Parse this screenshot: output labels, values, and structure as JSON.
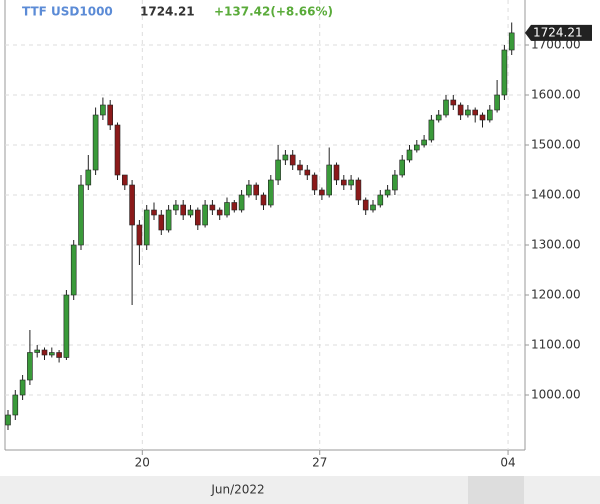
{
  "chart_data": {
    "type": "candlestick",
    "symbol": "TTF USD1000",
    "last": "1724.21",
    "change": "+137.42(+8.66%)",
    "period_label": "Jun/2022",
    "up_color": "#3a9a3a",
    "down_color": "#8b1a1a",
    "open": [
      940,
      960,
      1000,
      1030,
      1085,
      1090,
      1080,
      1085,
      1075,
      1200,
      1300,
      1420,
      1450,
      1560,
      1580,
      1540,
      1440,
      1420,
      1340,
      1300,
      1370,
      1360,
      1330,
      1370,
      1380,
      1360,
      1370,
      1340,
      1380,
      1370,
      1360,
      1385,
      1370,
      1400,
      1420,
      1400,
      1380,
      1430,
      1470,
      1480,
      1460,
      1450,
      1440,
      1410,
      1400,
      1460,
      1430,
      1420,
      1430,
      1390,
      1370,
      1380,
      1400,
      1410,
      1440,
      1470,
      1490,
      1500,
      1510,
      1550,
      1560,
      1590,
      1580,
      1560,
      1570,
      1560,
      1550,
      1570,
      1600,
      1690
    ],
    "high": [
      970,
      1010,
      1040,
      1130,
      1100,
      1095,
      1095,
      1090,
      1210,
      1310,
      1440,
      1480,
      1575,
      1595,
      1590,
      1545,
      1440,
      1430,
      1350,
      1380,
      1385,
      1370,
      1380,
      1390,
      1390,
      1380,
      1375,
      1390,
      1390,
      1375,
      1395,
      1390,
      1410,
      1430,
      1425,
      1405,
      1440,
      1500,
      1490,
      1490,
      1470,
      1460,
      1445,
      1415,
      1495,
      1465,
      1440,
      1440,
      1435,
      1395,
      1390,
      1410,
      1420,
      1450,
      1480,
      1500,
      1510,
      1520,
      1560,
      1570,
      1600,
      1600,
      1585,
      1580,
      1575,
      1565,
      1580,
      1630,
      1700,
      1745
    ],
    "low": [
      930,
      950,
      990,
      1020,
      1075,
      1070,
      1075,
      1065,
      1070,
      1190,
      1290,
      1410,
      1440,
      1550,
      1530,
      1430,
      1410,
      1180,
      1260,
      1290,
      1350,
      1320,
      1325,
      1360,
      1350,
      1355,
      1330,
      1335,
      1360,
      1350,
      1355,
      1365,
      1365,
      1395,
      1390,
      1370,
      1375,
      1420,
      1460,
      1450,
      1440,
      1430,
      1400,
      1390,
      1395,
      1420,
      1410,
      1410,
      1380,
      1360,
      1365,
      1375,
      1395,
      1400,
      1435,
      1465,
      1485,
      1495,
      1505,
      1545,
      1555,
      1570,
      1550,
      1555,
      1545,
      1535,
      1545,
      1565,
      1590,
      1680
    ],
    "close": [
      960,
      1000,
      1030,
      1085,
      1090,
      1080,
      1085,
      1075,
      1200,
      1300,
      1420,
      1450,
      1560,
      1580,
      1540,
      1440,
      1420,
      1340,
      1300,
      1370,
      1360,
      1330,
      1370,
      1380,
      1360,
      1370,
      1340,
      1380,
      1370,
      1360,
      1385,
      1370,
      1400,
      1420,
      1400,
      1380,
      1430,
      1470,
      1480,
      1460,
      1450,
      1440,
      1410,
      1400,
      1460,
      1430,
      1420,
      1430,
      1390,
      1370,
      1380,
      1400,
      1410,
      1440,
      1470,
      1490,
      1500,
      1510,
      1550,
      1560,
      1590,
      1580,
      1560,
      1570,
      1560,
      1550,
      1570,
      1600,
      1690,
      1724.21
    ],
    "xticks": [
      {
        "value": 18.4,
        "label": "20"
      },
      {
        "value": 42.7,
        "label": "27"
      },
      {
        "value": 68.5,
        "label": "04"
      }
    ],
    "ylim": [
      890,
      1790
    ],
    "yticks": [
      {
        "value": 1000,
        "label": "1000.00"
      },
      {
        "value": 1100,
        "label": "1100.00"
      },
      {
        "value": 1200,
        "label": "1200.00"
      },
      {
        "value": 1300,
        "label": "1300.00"
      },
      {
        "value": 1400,
        "label": "1400.00"
      },
      {
        "value": 1500,
        "label": "1500.00"
      },
      {
        "value": 1600,
        "label": "1600.00"
      },
      {
        "value": 1700,
        "label": "1700.00"
      }
    ],
    "grid": true
  }
}
